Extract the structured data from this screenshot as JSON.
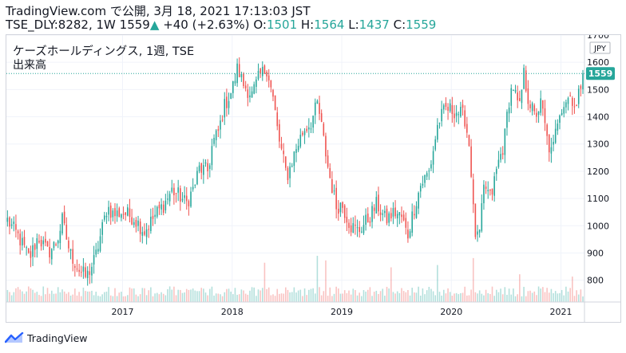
{
  "header": {
    "line1": "TradingView.com で公開, 3月 18, 2021 17:13:03 JST",
    "symbol": "TSE_DLY:8282, 1W",
    "last": "1559",
    "change": "+40 (+2.63%)",
    "o_label": "O:",
    "o_value": "1501",
    "h_label": "H:",
    "h_value": "1564",
    "l_label": "L:",
    "l_value": "1437",
    "c_label": "C:",
    "c_value": "1559"
  },
  "legend": {
    "title": "ケーズホールディングス, 1週, TSE",
    "volume_label": "出来高"
  },
  "currency": "JPY",
  "price_badge": "1559",
  "footer": {
    "brand": "TradingView"
  },
  "colors": {
    "up": "#26a69a",
    "down": "#ef5350",
    "badge": "#26a69a",
    "axis_text": "#131722"
  },
  "chart_data": {
    "type": "candlestick",
    "interval": "1W",
    "ylim": [
      720,
      1700
    ],
    "y_ticks": [
      800,
      900,
      1000,
      1100,
      1200,
      1300,
      1400,
      1500,
      1600,
      1700
    ],
    "x_ticks": [
      "2017",
      "2018",
      "2019",
      "2020",
      "2021"
    ],
    "x_tick_dates": [
      2017.0,
      2018.0,
      2019.0,
      2020.0,
      2021.0
    ],
    "x_range": [
      2015.94,
      2021.2
    ],
    "last_close": 1559,
    "close_anchors": [
      [
        2015.95,
        1020
      ],
      [
        2016.05,
        960
      ],
      [
        2016.15,
        880
      ],
      [
        2016.23,
        960
      ],
      [
        2016.32,
        900
      ],
      [
        2016.4,
        940
      ],
      [
        2016.45,
        1020
      ],
      [
        2016.52,
        900
      ],
      [
        2016.6,
        840
      ],
      [
        2016.67,
        810
      ],
      [
        2016.75,
        880
      ],
      [
        2016.82,
        1000
      ],
      [
        2016.86,
        1070
      ],
      [
        2016.92,
        1040
      ],
      [
        2017.0,
        1050
      ],
      [
        2017.1,
        1030
      ],
      [
        2017.2,
        980
      ],
      [
        2017.3,
        1040
      ],
      [
        2017.38,
        1080
      ],
      [
        2017.45,
        1130
      ],
      [
        2017.52,
        1110
      ],
      [
        2017.58,
        1080
      ],
      [
        2017.65,
        1140
      ],
      [
        2017.7,
        1210
      ],
      [
        2017.78,
        1200
      ],
      [
        2017.82,
        1300
      ],
      [
        2017.88,
        1350
      ],
      [
        2017.92,
        1430
      ],
      [
        2018.0,
        1500
      ],
      [
        2018.05,
        1580
      ],
      [
        2018.1,
        1520
      ],
      [
        2018.18,
        1480
      ],
      [
        2018.25,
        1550
      ],
      [
        2018.32,
        1580
      ],
      [
        2018.38,
        1450
      ],
      [
        2018.42,
        1330
      ],
      [
        2018.5,
        1180
      ],
      [
        2018.58,
        1280
      ],
      [
        2018.65,
        1350
      ],
      [
        2018.72,
        1380
      ],
      [
        2018.78,
        1450
      ],
      [
        2018.82,
        1350
      ],
      [
        2018.88,
        1200
      ],
      [
        2018.95,
        1070
      ],
      [
        2019.0,
        1080
      ],
      [
        2019.08,
        1000
      ],
      [
        2019.15,
        980
      ],
      [
        2019.25,
        1030
      ],
      [
        2019.32,
        1080
      ],
      [
        2019.4,
        1020
      ],
      [
        2019.48,
        1050
      ],
      [
        2019.55,
        1030
      ],
      [
        2019.6,
        960
      ],
      [
        2019.65,
        1050
      ],
      [
        2019.72,
        1150
      ],
      [
        2019.8,
        1200
      ],
      [
        2019.88,
        1380
      ],
      [
        2019.95,
        1430
      ],
      [
        2020.05,
        1420
      ],
      [
        2020.12,
        1400
      ],
      [
        2020.17,
        1280
      ],
      [
        2020.21,
        980
      ],
      [
        2020.25,
        940
      ],
      [
        2020.3,
        1150
      ],
      [
        2020.36,
        1100
      ],
      [
        2020.42,
        1220
      ],
      [
        2020.48,
        1300
      ],
      [
        2020.52,
        1450
      ],
      [
        2020.56,
        1520
      ],
      [
        2020.62,
        1420
      ],
      [
        2020.66,
        1560
      ],
      [
        2020.7,
        1470
      ],
      [
        2020.76,
        1400
      ],
      [
        2020.82,
        1450
      ],
      [
        2020.88,
        1300
      ],
      [
        2020.92,
        1260
      ],
      [
        2020.98,
        1420
      ],
      [
        2021.04,
        1460
      ],
      [
        2021.09,
        1480
      ],
      [
        2021.14,
        1430
      ],
      [
        2021.18,
        1520
      ],
      [
        2021.2,
        1559
      ]
    ],
    "volume_spikes": [
      [
        2018.3,
        0.85
      ],
      [
        2018.78,
        1.0
      ],
      [
        2018.86,
        0.9
      ],
      [
        2019.45,
        0.75
      ],
      [
        2019.88,
        0.8
      ],
      [
        2020.2,
        0.95
      ],
      [
        2020.62,
        0.6
      ],
      [
        2021.1,
        0.55
      ]
    ]
  }
}
